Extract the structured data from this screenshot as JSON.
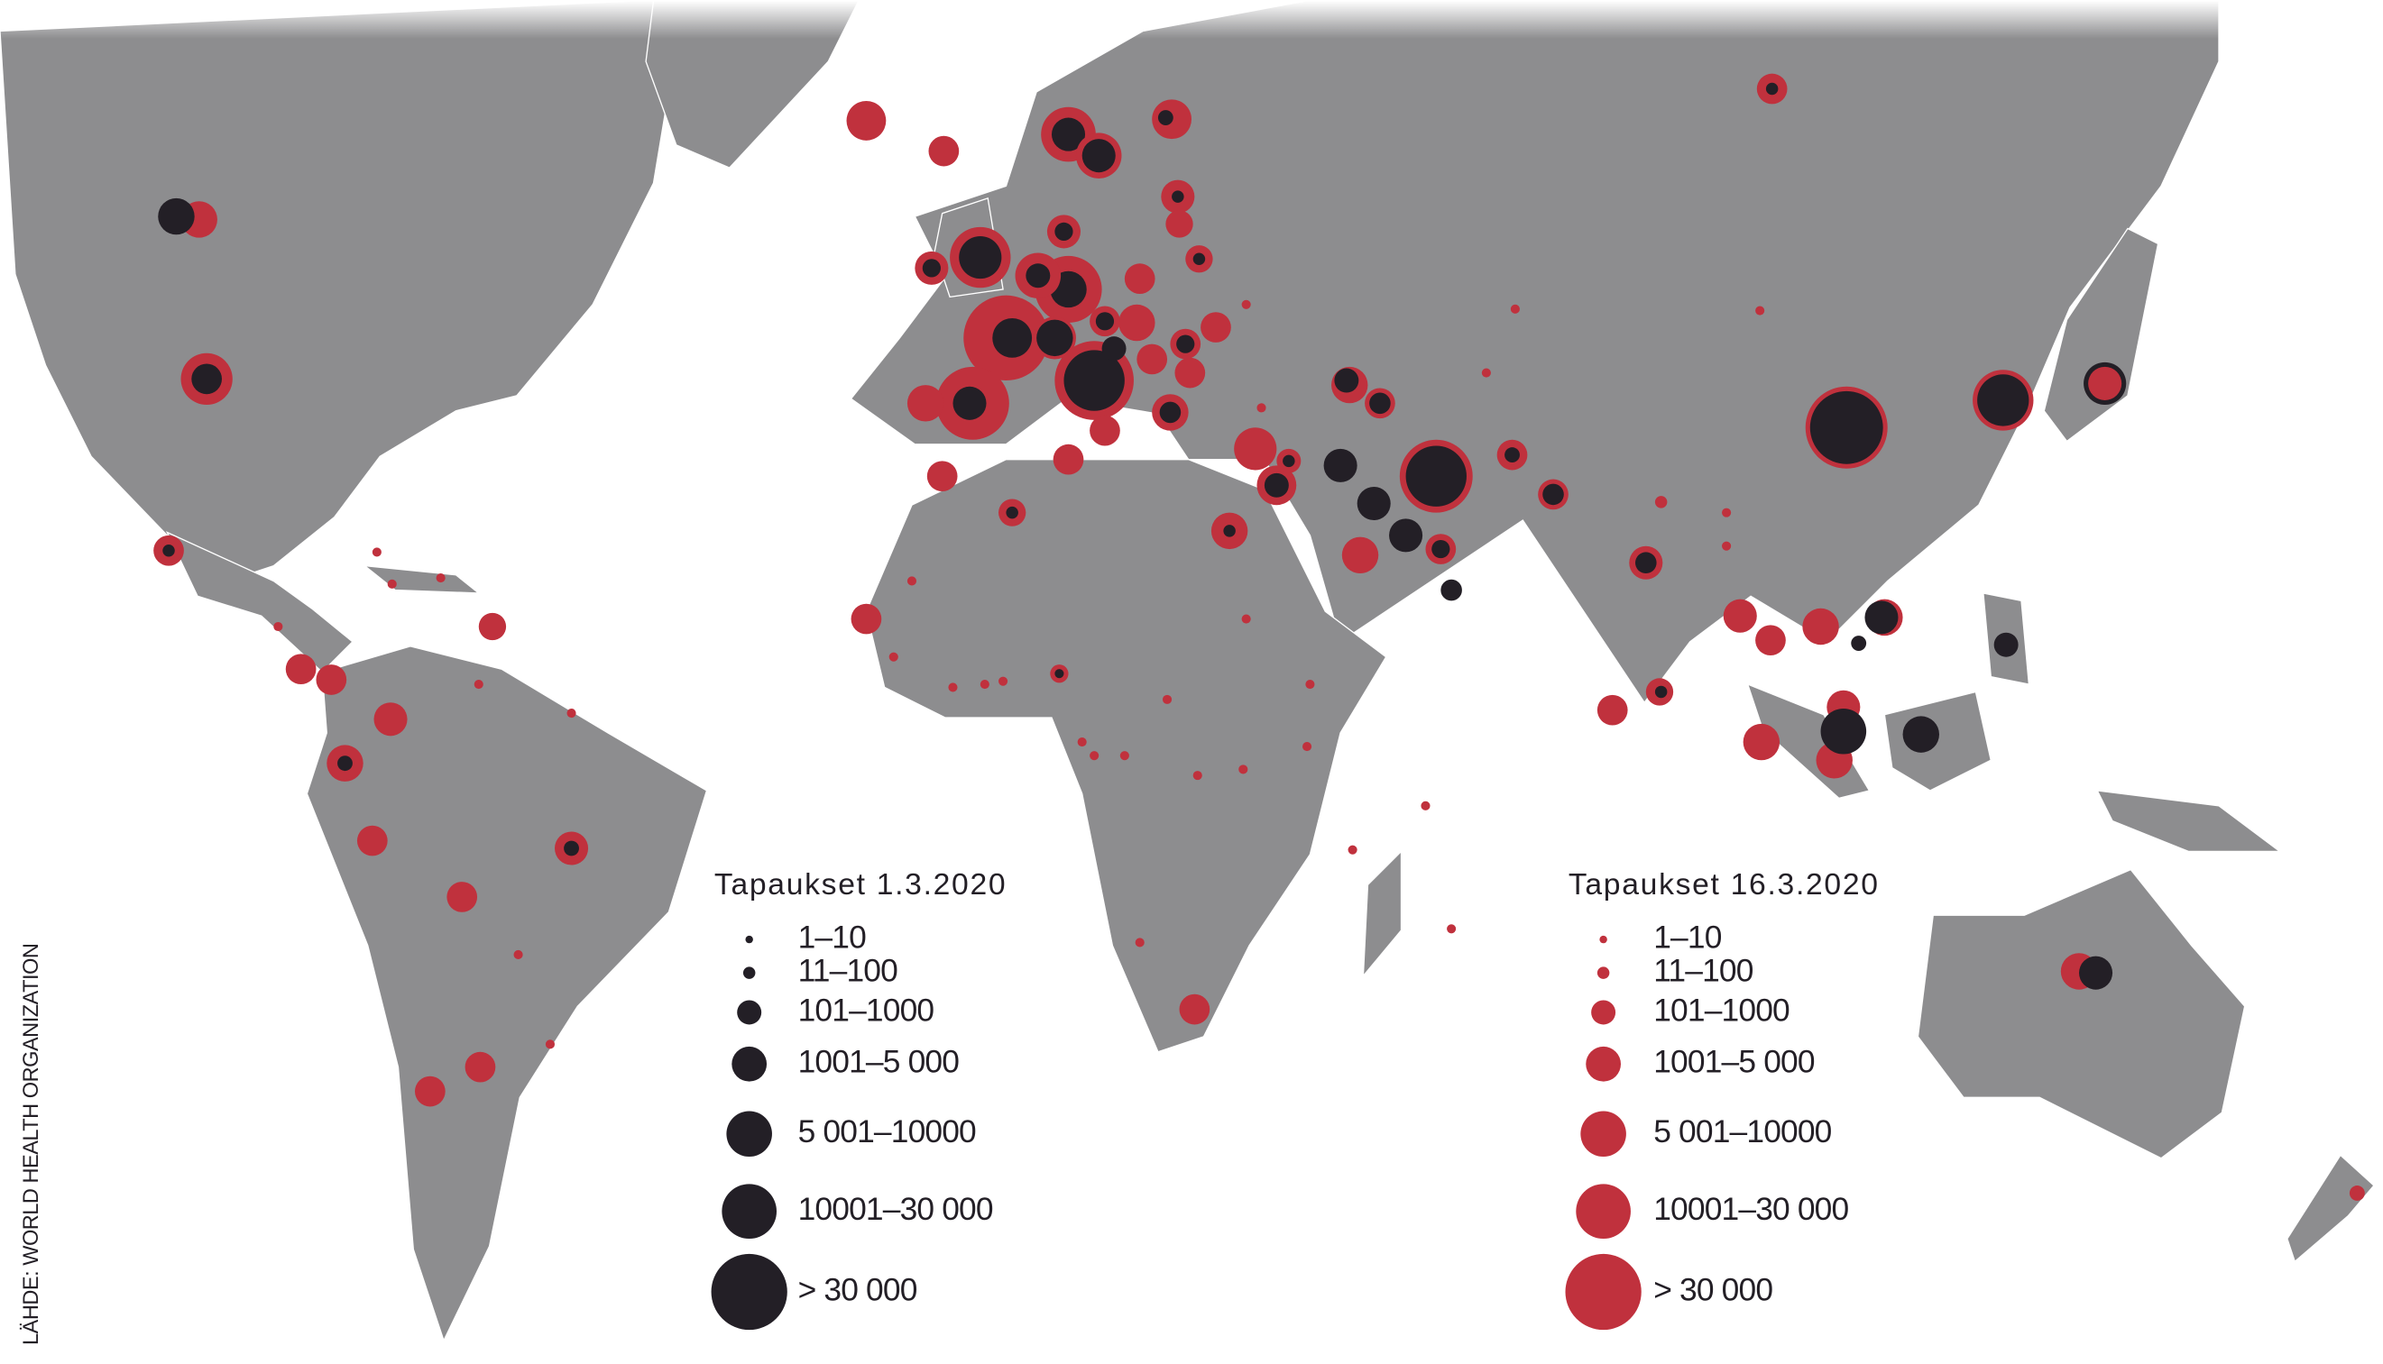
{
  "source": "LÄHDE: WORLD HEALTH ORGANIZATION",
  "legends": [
    {
      "title": "Tapaukset 1.3.2020",
      "color": "#231f26",
      "items": [
        "1–10",
        "11–100",
        "101–1000",
        "1001–5 000",
        "5 001–10000",
        "10001–30 000",
        "> 30 000"
      ]
    },
    {
      "title": "Tapaukset 16.3.2020",
      "color": "#c0313d",
      "items": [
        "1–10",
        "11–100",
        "101–1000",
        "1001–5 000",
        "5 001–10000",
        "10001–30 000",
        "> 30 000"
      ]
    }
  ]
}
